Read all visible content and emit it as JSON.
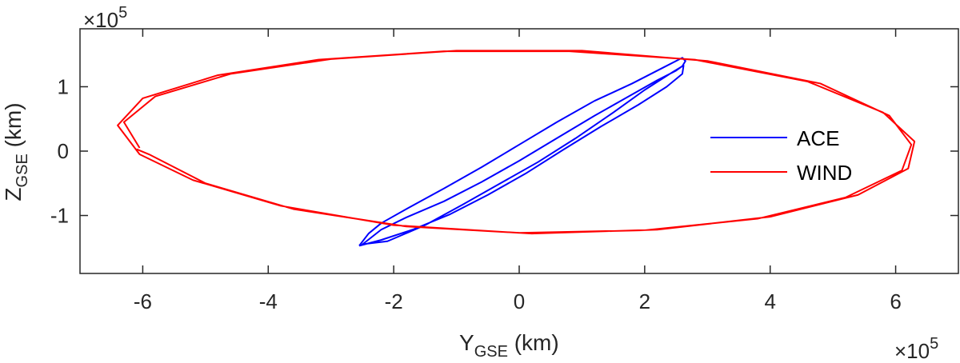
{
  "chart_data": {
    "type": "line",
    "xlabel": {
      "main": "Y",
      "sub": "GSE",
      "unit": " (km)"
    },
    "ylabel": {
      "main": "Z",
      "sub": "GSE",
      "unit": " (km)"
    },
    "x_exponent_label": "×10",
    "x_exponent_power": "5",
    "y_exponent_label": "×10",
    "y_exponent_power": "5",
    "xlim": [
      -7,
      7
    ],
    "ylim": [
      -1.9,
      1.9
    ],
    "xticks": [
      -6,
      -4,
      -2,
      0,
      2,
      4,
      6
    ],
    "xtick_labels": [
      "-6",
      "-4",
      "-2",
      "0",
      "2",
      "4",
      "6"
    ],
    "yticks": [
      -1,
      0,
      1
    ],
    "ytick_labels": [
      "-1",
      "0",
      "1"
    ],
    "grid": false,
    "legend_position": "right",
    "series": [
      {
        "name": "ACE",
        "color": "#0000ff",
        "points": [
          [
            -2.55,
            -1.47
          ],
          [
            -2.4,
            -1.28
          ],
          [
            -2.2,
            -1.12
          ],
          [
            -1.8,
            -0.9
          ],
          [
            -1.2,
            -0.58
          ],
          [
            -0.6,
            -0.25
          ],
          [
            0.0,
            0.1
          ],
          [
            0.6,
            0.45
          ],
          [
            1.2,
            0.78
          ],
          [
            1.8,
            1.05
          ],
          [
            2.3,
            1.3
          ],
          [
            2.6,
            1.45
          ],
          [
            2.65,
            1.4
          ],
          [
            2.6,
            1.32
          ],
          [
            2.5,
            1.25
          ],
          [
            2.2,
            1.1
          ],
          [
            1.8,
            0.88
          ],
          [
            1.2,
            0.55
          ],
          [
            0.6,
            0.2
          ],
          [
            0.0,
            -0.15
          ],
          [
            -0.6,
            -0.48
          ],
          [
            -1.2,
            -0.78
          ],
          [
            -1.8,
            -1.03
          ],
          [
            -2.2,
            -1.22
          ],
          [
            -2.5,
            -1.45
          ],
          [
            -2.45,
            -1.44
          ],
          [
            -2.1,
            -1.4
          ],
          [
            -1.5,
            -1.15
          ],
          [
            -0.9,
            -0.83
          ],
          [
            -0.3,
            -0.5
          ],
          [
            0.3,
            -0.17
          ],
          [
            0.9,
            0.2
          ],
          [
            1.5,
            0.6
          ],
          [
            2.0,
            0.95
          ],
          [
            2.45,
            1.23
          ],
          [
            2.62,
            1.33
          ],
          [
            2.6,
            1.2
          ],
          [
            2.35,
            1.0
          ],
          [
            1.9,
            0.72
          ],
          [
            1.3,
            0.38
          ],
          [
            0.7,
            0.02
          ],
          [
            0.1,
            -0.35
          ],
          [
            -0.5,
            -0.68
          ],
          [
            -1.1,
            -0.98
          ],
          [
            -1.7,
            -1.22
          ],
          [
            -2.2,
            -1.38
          ],
          [
            -2.55,
            -1.47
          ]
        ]
      },
      {
        "name": "WIND",
        "color": "#ff0000",
        "points": [
          [
            -6.05,
            0.05
          ],
          [
            -6.3,
            0.45
          ],
          [
            -5.8,
            0.85
          ],
          [
            -4.6,
            1.2
          ],
          [
            -3.0,
            1.43
          ],
          [
            -1.0,
            1.56
          ],
          [
            1.0,
            1.56
          ],
          [
            3.0,
            1.4
          ],
          [
            4.8,
            1.05
          ],
          [
            5.9,
            0.55
          ],
          [
            6.25,
            0.1
          ],
          [
            6.1,
            -0.3
          ],
          [
            5.2,
            -0.72
          ],
          [
            3.8,
            -1.05
          ],
          [
            2.0,
            -1.23
          ],
          [
            0.0,
            -1.27
          ],
          [
            -2.0,
            -1.15
          ],
          [
            -3.8,
            -0.85
          ],
          [
            -5.2,
            -0.45
          ],
          [
            -6.05,
            -0.05
          ],
          [
            -6.4,
            0.4
          ],
          [
            -6.0,
            0.82
          ],
          [
            -4.8,
            1.18
          ],
          [
            -3.2,
            1.42
          ],
          [
            -1.2,
            1.55
          ],
          [
            0.8,
            1.55
          ],
          [
            2.8,
            1.42
          ],
          [
            4.6,
            1.08
          ],
          [
            5.8,
            0.6
          ],
          [
            6.3,
            0.15
          ],
          [
            6.2,
            -0.27
          ],
          [
            5.4,
            -0.68
          ],
          [
            4.0,
            -1.02
          ],
          [
            2.2,
            -1.22
          ],
          [
            0.2,
            -1.28
          ],
          [
            -1.8,
            -1.17
          ],
          [
            -3.6,
            -0.9
          ],
          [
            -5.0,
            -0.5
          ],
          [
            -5.9,
            -0.05
          ],
          [
            -6.1,
            0.03
          ]
        ]
      }
    ]
  }
}
